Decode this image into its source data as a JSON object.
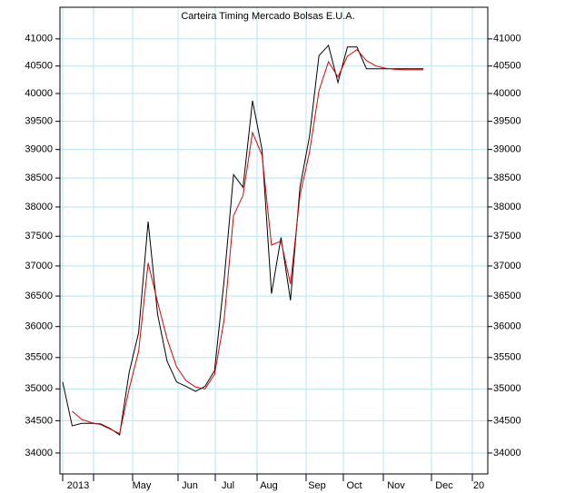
{
  "chart_data": {
    "type": "line",
    "title": "Carteira Timing Mercado Bolsas E.U.A.",
    "x_labels": [
      "2013",
      "May",
      "Jun",
      "Jul",
      "Aug",
      "Sep",
      "Oct",
      "Nov",
      "Dec",
      "20"
    ],
    "ylim": [
      33680,
      41590
    ],
    "log_scale": true,
    "grid": true,
    "yticks": [
      34000,
      34500,
      35000,
      35500,
      36000,
      36500,
      37000,
      37500,
      38000,
      38500,
      39000,
      39500,
      40000,
      40500,
      41000
    ],
    "series": [
      {
        "color": "#000000",
        "values": [
          35110,
          34420,
          34460,
          34460,
          34450,
          34380,
          34280,
          35260,
          35900,
          37750,
          36200,
          35440,
          35110,
          35040,
          34960,
          35040,
          35290,
          36750,
          38560,
          38340,
          39870,
          39000,
          36540,
          37480,
          36430,
          38340,
          39230,
          40690,
          40880,
          40200,
          40850,
          40850,
          40450,
          40450,
          40450,
          40450,
          40450,
          40450,
          40450
        ]
      },
      {
        "color": "#e00000",
        "values": [
          null,
          34650,
          34520,
          34470,
          34440,
          34370,
          34300,
          35000,
          35600,
          37050,
          36400,
          35800,
          35350,
          35130,
          35030,
          35000,
          35230,
          36100,
          37850,
          38200,
          39300,
          38900,
          37350,
          37420,
          36700,
          38200,
          38950,
          40050,
          40580,
          40300,
          40680,
          40800,
          40600,
          40500,
          40460,
          40440,
          40430,
          40430,
          40430
        ]
      }
    ]
  }
}
